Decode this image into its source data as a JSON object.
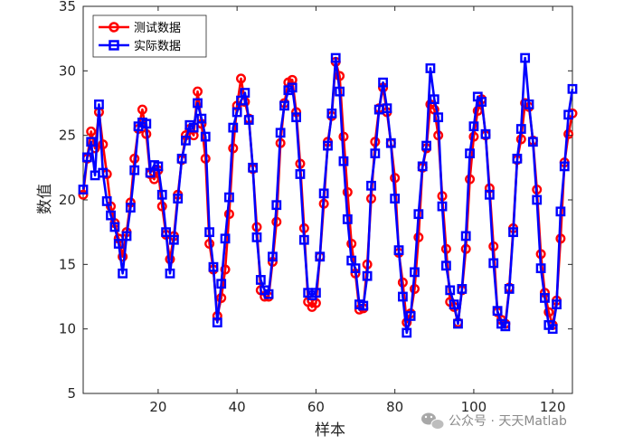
{
  "chart_data": {
    "type": "line",
    "xlabel": "样本",
    "ylabel": "数值",
    "xlim": [
      1,
      125
    ],
    "ylim": [
      5,
      35
    ],
    "xticks": [
      20,
      40,
      60,
      80,
      100,
      120
    ],
    "yticks": [
      5,
      10,
      15,
      20,
      25,
      30,
      35
    ],
    "grid": false,
    "legend_position": "top-left",
    "series": [
      {
        "name": "测试数据",
        "color": "#ff0000",
        "marker": "circle",
        "x": [
          1,
          2,
          3,
          4,
          5,
          6,
          7,
          8,
          9,
          10,
          11,
          12,
          13,
          14,
          15,
          16,
          17,
          18,
          19,
          20,
          21,
          22,
          23,
          24,
          25,
          26,
          27,
          28,
          29,
          30,
          31,
          32,
          33,
          34,
          35,
          36,
          37,
          38,
          39,
          40,
          41,
          42,
          43,
          44,
          45,
          46,
          47,
          48,
          49,
          50,
          51,
          52,
          53,
          54,
          55,
          56,
          57,
          58,
          59,
          60,
          61,
          62,
          63,
          64,
          65,
          66,
          67,
          68,
          69,
          70,
          71,
          72,
          73,
          74,
          75,
          76,
          77,
          78,
          79,
          80,
          81,
          82,
          83,
          84,
          85,
          86,
          87,
          88,
          89,
          90,
          91,
          92,
          93,
          94,
          95,
          96,
          97,
          98,
          99,
          100,
          101,
          102,
          103,
          104,
          105,
          106,
          107,
          108,
          109,
          110,
          111,
          112,
          113,
          114,
          115,
          116,
          117,
          118,
          119,
          120,
          121,
          122,
          123,
          124,
          125
        ],
        "values": [
          20.4,
          23.2,
          25.3,
          24.0,
          26.8,
          24.3,
          22.0,
          19.5,
          18.2,
          17.0,
          15.6,
          17.5,
          19.8,
          23.2,
          25.5,
          27.0,
          25.1,
          22.0,
          21.6,
          22.3,
          19.5,
          17.3,
          15.4,
          17.2,
          20.4,
          23.1,
          25.0,
          25.5,
          25.0,
          28.4,
          25.9,
          23.2,
          16.6,
          14.6,
          11.0,
          12.4,
          14.6,
          18.9,
          24.0,
          27.3,
          29.4,
          27.6,
          26.3,
          22.4,
          17.9,
          13.0,
          12.5,
          12.5,
          15.2,
          18.3,
          24.4,
          27.5,
          29.1,
          29.3,
          26.8,
          22.8,
          17.8,
          12.1,
          11.7,
          12.0,
          15.6,
          19.7,
          24.5,
          26.5,
          30.7,
          29.6,
          24.9,
          20.6,
          16.6,
          14.3,
          11.5,
          11.6,
          15.0,
          20.1,
          24.5,
          27.1,
          28.7,
          26.8,
          24.4,
          21.7,
          15.9,
          13.6,
          10.5,
          11.2,
          13.1,
          17.1,
          22.5,
          24.0,
          27.4,
          27.0,
          25.0,
          20.3,
          16.2,
          12.1,
          11.7,
          10.5,
          13.0,
          16.2,
          21.6,
          24.9,
          26.9,
          27.8,
          25.0,
          20.9,
          16.4,
          11.3,
          10.7,
          10.4,
          13.2,
          17.8,
          23.1,
          24.7,
          27.5,
          27.2,
          24.6,
          20.8,
          15.8,
          12.8,
          11.3,
          10.3,
          12.2,
          17.0,
          22.9,
          25.1,
          26.7
        ]
      },
      {
        "name": "实际数据",
        "color": "#0000ff",
        "marker": "square",
        "x": [
          1,
          2,
          3,
          4,
          5,
          6,
          7,
          8,
          9,
          10,
          11,
          12,
          13,
          14,
          15,
          16,
          17,
          18,
          19,
          20,
          21,
          22,
          23,
          24,
          25,
          26,
          27,
          28,
          29,
          30,
          31,
          32,
          33,
          34,
          35,
          36,
          37,
          38,
          39,
          40,
          41,
          42,
          43,
          44,
          45,
          46,
          47,
          48,
          49,
          50,
          51,
          52,
          53,
          54,
          55,
          56,
          57,
          58,
          59,
          60,
          61,
          62,
          63,
          64,
          65,
          66,
          67,
          68,
          69,
          70,
          71,
          72,
          73,
          74,
          75,
          76,
          77,
          78,
          79,
          80,
          81,
          82,
          83,
          84,
          85,
          86,
          87,
          88,
          89,
          90,
          91,
          92,
          93,
          94,
          95,
          96,
          97,
          98,
          99,
          100,
          101,
          102,
          103,
          104,
          105,
          106,
          107,
          108,
          109,
          110,
          111,
          112,
          113,
          114,
          115,
          116,
          117,
          118,
          119,
          120,
          121,
          122,
          123,
          124,
          125
        ],
        "values": [
          20.8,
          23.3,
          24.5,
          21.9,
          27.4,
          22.1,
          19.9,
          18.8,
          17.9,
          16.6,
          14.3,
          17.2,
          19.4,
          22.3,
          25.7,
          26.0,
          25.9,
          22.1,
          22.7,
          22.6,
          20.4,
          17.5,
          14.3,
          16.9,
          20.1,
          23.2,
          24.6,
          25.8,
          25.6,
          27.5,
          26.3,
          24.9,
          17.5,
          14.8,
          10.5,
          13.5,
          17.0,
          20.2,
          25.6,
          26.8,
          27.7,
          28.3,
          26.2,
          22.5,
          17.1,
          13.8,
          13.0,
          12.7,
          15.6,
          19.6,
          25.2,
          27.3,
          28.5,
          28.7,
          26.4,
          22.0,
          16.9,
          12.8,
          12.6,
          12.8,
          15.6,
          20.5,
          24.2,
          26.7,
          31.0,
          28.4,
          23.0,
          18.5,
          15.3,
          14.7,
          11.9,
          11.8,
          14.1,
          21.1,
          23.6,
          27.0,
          29.1,
          27.1,
          24.4,
          20.1,
          16.1,
          12.5,
          9.7,
          11.0,
          14.4,
          18.9,
          22.6,
          24.2,
          30.2,
          27.8,
          26.4,
          19.5,
          14.9,
          13.0,
          11.9,
          10.4,
          13.1,
          17.2,
          23.6,
          25.7,
          28.0,
          27.6,
          25.1,
          20.4,
          15.1,
          11.4,
          10.4,
          10.2,
          13.1,
          17.5,
          23.2,
          25.5,
          31.0,
          27.4,
          24.5,
          20.0,
          14.7,
          12.4,
          10.3,
          10.0,
          11.9,
          19.1,
          22.6,
          26.6,
          28.6
        ]
      }
    ]
  },
  "watermark": {
    "text": "公众号 · 天天Matlab",
    "icon": "wechat-icon"
  }
}
